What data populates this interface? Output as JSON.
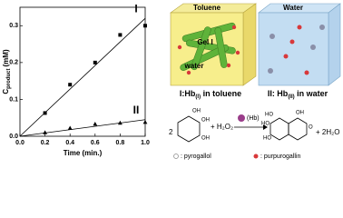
{
  "chart_data": {
    "type": "scatter",
    "xlabel": "Time (min.)",
    "ylabel": {
      "main": "C",
      "sub": "product",
      "unit": "(mM)"
    },
    "xlim": [
      0,
      1
    ],
    "ylim": [
      0,
      0.35
    ],
    "xticks": [
      {
        "value": 0,
        "label": "0.0"
      },
      {
        "value": 0.2,
        "label": "0.2"
      },
      {
        "value": 0.4,
        "label": "0.4"
      },
      {
        "value": 0.6,
        "label": "0.6"
      },
      {
        "value": 0.8,
        "label": "0.8"
      },
      {
        "value": 1,
        "label": "1.0"
      }
    ],
    "yticks": [
      {
        "value": 0,
        "label": "0.0"
      },
      {
        "value": 0.1,
        "label": "0.1"
      },
      {
        "value": 0.2,
        "label": "0.2"
      },
      {
        "value": 0.3,
        "label": "0.3"
      }
    ],
    "series": [
      {
        "name": "I",
        "color": "#000000",
        "marker": "square",
        "x": [
          0.2,
          0.4,
          0.6,
          0.8,
          1.0
        ],
        "values": [
          0.063,
          0.14,
          0.2,
          0.275,
          0.3
        ]
      },
      {
        "name": "II",
        "color": "#000000",
        "marker": "triangle",
        "x": [
          0.2,
          0.4,
          0.6,
          0.8,
          1.0
        ],
        "values": [
          0.01,
          0.022,
          0.033,
          0.036,
          0.038
        ]
      }
    ],
    "fits": [
      {
        "x": [
          0,
          1
        ],
        "values": [
          0,
          0.32
        ]
      },
      {
        "x": [
          0,
          1
        ],
        "values": [
          0,
          0.045
        ]
      }
    ]
  },
  "diagram": {
    "toluene": "Toluene",
    "gel": "Gel I",
    "water_inner": "water",
    "water": "Water",
    "caption_1": [
      "I:Hb",
      "(I)",
      " in toluene"
    ],
    "caption_2": [
      "II: Hb",
      "(II)",
      " in water"
    ],
    "coef": "2",
    "reagent": "+ H₂O₂",
    "catalyst": "(Hb)",
    "byproduct": "+ 2H₂O",
    "oh": "OH",
    "ho": "HO",
    "o": "O",
    "legend_1": ": pyrogallol",
    "legend_2": ": purpurogallin"
  }
}
